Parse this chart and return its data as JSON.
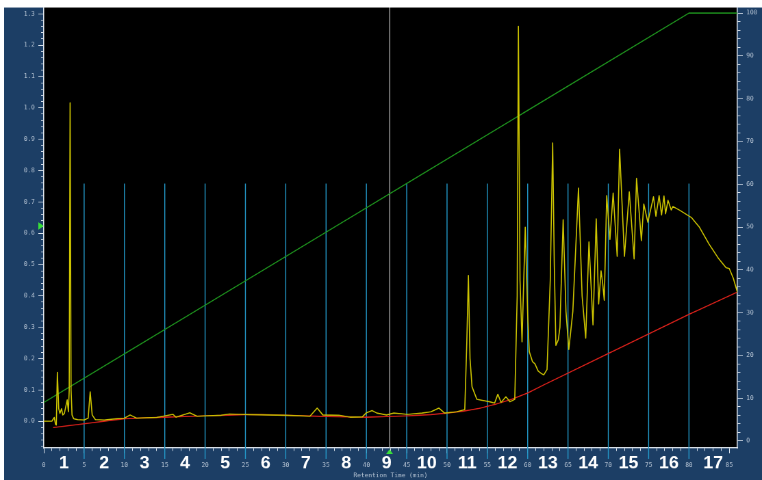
{
  "chart_data": {
    "type": "line",
    "xlabel": "Retention Time (min)",
    "xlim": [
      0,
      86
    ],
    "xticks": [
      0,
      {
        "value": 1,
        "label": null
      },
      {
        "value": 2,
        "label": null
      },
      {
        "value": 3,
        "label": null
      },
      {
        "value": 4,
        "label": null
      },
      5,
      {
        "value": 6,
        "label": null
      },
      {
        "value": 7,
        "label": null
      },
      {
        "value": 8,
        "label": null
      },
      {
        "value": 9,
        "label": null
      },
      10,
      {
        "value": 11,
        "label": null
      },
      {
        "value": 12,
        "label": null
      },
      {
        "value": 13,
        "label": null
      },
      {
        "value": 14,
        "label": null
      },
      15,
      {
        "value": 16,
        "label": null
      },
      {
        "value": 17,
        "label": null
      },
      {
        "value": 18,
        "label": null
      },
      {
        "value": 19,
        "label": null
      },
      20,
      {
        "value": 21,
        "label": null
      },
      {
        "value": 22,
        "label": null
      },
      {
        "value": 23,
        "label": null
      },
      {
        "value": 24,
        "label": null
      },
      25,
      {
        "value": 26,
        "label": null
      },
      {
        "value": 27,
        "label": null
      },
      {
        "value": 28,
        "label": null
      },
      {
        "value": 29,
        "label": null
      },
      30,
      {
        "value": 31,
        "label": null
      },
      {
        "value": 32,
        "label": null
      },
      {
        "value": 33,
        "label": null
      },
      {
        "value": 34,
        "label": null
      },
      35,
      {
        "value": 36,
        "label": null
      },
      {
        "value": 37,
        "label": null
      },
      {
        "value": 38,
        "label": null
      },
      {
        "value": 39,
        "label": null
      },
      40,
      {
        "value": 41,
        "label": null
      },
      {
        "value": 42,
        "label": null
      },
      {
        "value": 43,
        "label": null
      },
      {
        "value": 44,
        "label": null
      },
      45,
      {
        "value": 46,
        "label": null
      },
      {
        "value": 47,
        "label": null
      },
      {
        "value": 48,
        "label": null
      },
      {
        "value": 49,
        "label": null
      },
      50,
      {
        "value": 51,
        "label": null
      },
      {
        "value": 52,
        "label": null
      },
      {
        "value": 53,
        "label": null
      },
      {
        "value": 54,
        "label": null
      },
      55,
      {
        "value": 56,
        "label": null
      },
      {
        "value": 57,
        "label": null
      },
      {
        "value": 58,
        "label": null
      },
      {
        "value": 59,
        "label": null
      },
      60,
      {
        "value": 61,
        "label": null
      },
      {
        "value": 62,
        "label": null
      },
      {
        "value": 63,
        "label": null
      },
      {
        "value": 64,
        "label": null
      },
      65,
      {
        "value": 66,
        "label": null
      },
      {
        "value": 67,
        "label": null
      },
      {
        "value": 68,
        "label": null
      },
      {
        "value": 69,
        "label": null
      },
      70,
      {
        "value": 71,
        "label": null
      },
      {
        "value": 72,
        "label": null
      },
      {
        "value": 73,
        "label": null
      },
      {
        "value": 74,
        "label": null
      },
      75,
      {
        "value": 76,
        "label": null
      },
      {
        "value": 77,
        "label": null
      },
      {
        "value": 78,
        "label": null
      },
      {
        "value": 79,
        "label": null
      },
      80,
      {
        "value": 81,
        "label": null
      },
      {
        "value": 82,
        "label": null
      },
      {
        "value": 83,
        "label": null
      },
      {
        "value": 84,
        "label": null
      },
      85
    ],
    "ylim": [
      -0.085,
      1.32
    ],
    "yticks": [
      {
        "value": -0.08,
        "label": null
      },
      {
        "value": -0.06,
        "label": null
      },
      {
        "value": -0.04,
        "label": null
      },
      {
        "value": -0.02,
        "label": null
      },
      {
        "value": 0,
        "label": "0.0"
      },
      {
        "value": 0.02,
        "label": null
      },
      {
        "value": 0.04,
        "label": null
      },
      {
        "value": 0.06,
        "label": null
      },
      {
        "value": 0.08,
        "label": null
      },
      0.1,
      {
        "value": 0.12,
        "label": null
      },
      {
        "value": 0.14,
        "label": null
      },
      {
        "value": 0.16,
        "label": null
      },
      {
        "value": 0.18,
        "label": null
      },
      0.2,
      {
        "value": 0.22,
        "label": null
      },
      {
        "value": 0.24,
        "label": null
      },
      {
        "value": 0.26,
        "label": null
      },
      {
        "value": 0.28,
        "label": null
      },
      0.3,
      {
        "value": 0.32,
        "label": null
      },
      {
        "value": 0.34,
        "label": null
      },
      {
        "value": 0.36,
        "label": null
      },
      {
        "value": 0.38,
        "label": null
      },
      0.4,
      {
        "value": 0.42,
        "label": null
      },
      {
        "value": 0.44,
        "label": null
      },
      {
        "value": 0.46,
        "label": null
      },
      {
        "value": 0.48,
        "label": null
      },
      0.5,
      {
        "value": 0.52,
        "label": null
      },
      {
        "value": 0.54,
        "label": null
      },
      {
        "value": 0.56,
        "label": null
      },
      {
        "value": 0.58,
        "label": null
      },
      0.6,
      {
        "value": 0.62,
        "label": null
      },
      {
        "value": 0.64,
        "label": null
      },
      {
        "value": 0.66,
        "label": null
      },
      {
        "value": 0.68,
        "label": null
      },
      0.7,
      {
        "value": 0.72,
        "label": null
      },
      {
        "value": 0.74,
        "label": null
      },
      {
        "value": 0.76,
        "label": null
      },
      {
        "value": 0.78,
        "label": null
      },
      0.8,
      {
        "value": 0.82,
        "label": null
      },
      {
        "value": 0.84,
        "label": null
      },
      {
        "value": 0.86,
        "label": null
      },
      {
        "value": 0.88,
        "label": null
      },
      0.9,
      {
        "value": 0.92,
        "label": null
      },
      {
        "value": 0.94,
        "label": null
      },
      {
        "value": 0.96,
        "label": null
      },
      {
        "value": 0.98,
        "label": null
      },
      {
        "value": 1,
        "label": "1.0"
      },
      {
        "value": 1.02,
        "label": null
      },
      {
        "value": 1.04,
        "label": null
      },
      {
        "value": 1.06,
        "label": null
      },
      {
        "value": 1.08,
        "label": null
      },
      1.1,
      {
        "value": 1.12,
        "label": null
      },
      {
        "value": 1.14,
        "label": null
      },
      {
        "value": 1.16,
        "label": null
      },
      {
        "value": 1.18,
        "label": null
      },
      1.2,
      {
        "value": 1.22,
        "label": null
      },
      {
        "value": 1.24,
        "label": null
      },
      {
        "value": 1.26,
        "label": null
      },
      {
        "value": 1.28,
        "label": null
      },
      1.3
    ],
    "y2lim": [
      -1.6,
      101.3
    ],
    "y2ticks": [
      0,
      {
        "value": 2,
        "label": null
      },
      {
        "value": 4,
        "label": null
      },
      {
        "value": 6,
        "label": null
      },
      {
        "value": 8,
        "label": null
      },
      10,
      {
        "value": 12,
        "label": null
      },
      {
        "value": 14,
        "label": null
      },
      {
        "value": 16,
        "label": null
      },
      {
        "value": 18,
        "label": null
      },
      20,
      {
        "value": 22,
        "label": null
      },
      {
        "value": 24,
        "label": null
      },
      {
        "value": 26,
        "label": null
      },
      {
        "value": 28,
        "label": null
      },
      30,
      {
        "value": 32,
        "label": null
      },
      {
        "value": 34,
        "label": null
      },
      {
        "value": 36,
        "label": null
      },
      {
        "value": 38,
        "label": null
      },
      40,
      {
        "value": 42,
        "label": null
      },
      {
        "value": 44,
        "label": null
      },
      {
        "value": 46,
        "label": null
      },
      {
        "value": 48,
        "label": null
      },
      50,
      {
        "value": 52,
        "label": null
      },
      {
        "value": 54,
        "label": null
      },
      {
        "value": 56,
        "label": null
      },
      {
        "value": 58,
        "label": null
      },
      60,
      {
        "value": 62,
        "label": null
      },
      {
        "value": 64,
        "label": null
      },
      {
        "value": 66,
        "label": null
      },
      {
        "value": 68,
        "label": null
      },
      70,
      {
        "value": 72,
        "label": null
      },
      {
        "value": 74,
        "label": null
      },
      {
        "value": 76,
        "label": null
      },
      {
        "value": 78,
        "label": null
      },
      80,
      {
        "value": 82,
        "label": null
      },
      {
        "value": 84,
        "label": null
      },
      {
        "value": 86,
        "label": null
      },
      {
        "value": 88,
        "label": null
      },
      90,
      {
        "value": 92,
        "label": null
      },
      {
        "value": 94,
        "label": null
      },
      {
        "value": 96,
        "label": null
      },
      {
        "value": 98,
        "label": null
      },
      100
    ],
    "series": [
      {
        "color": "#cdc400",
        "x": [
          0,
          1,
          1.3,
          1.45,
          1.55,
          1.68,
          1.85,
          2,
          2.2,
          2.35,
          2.55,
          2.75,
          2.9,
          3.05,
          3.15,
          3.26,
          3.38,
          3.5,
          3.7,
          4.2,
          5,
          5.5,
          5.75,
          6,
          6.4,
          7.5,
          9,
          10,
          10.7,
          11.5,
          14,
          16,
          16.4,
          18.1,
          19,
          22,
          23,
          24.5,
          25.5,
          30,
          33,
          33.9,
          34.6,
          36.6,
          38,
          39.5,
          40,
          40.7,
          41.3,
          42.5,
          43.4,
          45.1,
          46.9,
          48,
          49,
          49.7,
          51.2,
          52.2,
          52.45,
          52.65,
          52.85,
          53.1,
          53.7,
          55.3,
          55.9,
          56.3,
          56.7,
          57.3,
          57.8,
          58.4,
          58.7,
          58.85,
          59.05,
          59.3,
          59.7,
          60,
          60.2,
          60.6,
          60.9,
          61.3,
          61.7,
          62,
          62.4,
          62.8,
          63.1,
          63.3,
          63.5,
          63.8,
          64,
          64.4,
          64.75,
          65.1,
          65.6,
          66.3,
          66.75,
          67.2,
          67.6,
          68.1,
          68.5,
          68.8,
          69.1,
          69.3,
          69.5,
          69.8,
          70.2,
          70.6,
          71.1,
          71.4,
          72,
          72.6,
          73.2,
          73.5,
          74.1,
          74.4,
          74.9,
          75.6,
          75.9,
          76.3,
          76.6,
          76.9,
          77.1,
          77.4,
          77.8,
          78,
          78.8,
          80.3,
          81.3,
          82.5,
          83.7,
          84.6,
          85,
          85.5,
          86
        ],
        "values": [
          0,
          0,
          0.012,
          -0.01,
          -0.012,
          0.156,
          0.04,
          0.025,
          0.04,
          0.02,
          0.025,
          0.05,
          0.068,
          0.03,
          0.1,
          1.016,
          0.1,
          0.02,
          0.008,
          0.005,
          0.004,
          0.01,
          0.094,
          0.02,
          0.005,
          0.004,
          0.008,
          0.01,
          0.02,
          0.01,
          0.012,
          0.022,
          0.013,
          0.027,
          0.016,
          0.019,
          0.023,
          0.022,
          0.021,
          0.019,
          0.016,
          0.042,
          0.02,
          0.019,
          0.013,
          0.014,
          0.027,
          0.034,
          0.026,
          0.02,
          0.026,
          0.022,
          0.026,
          0.03,
          0.042,
          0.026,
          0.03,
          0.037,
          0.25,
          0.465,
          0.2,
          0.11,
          0.07,
          0.062,
          0.058,
          0.086,
          0.06,
          0.078,
          0.062,
          0.07,
          0.4,
          1.26,
          0.45,
          0.253,
          0.619,
          0.34,
          0.222,
          0.19,
          0.183,
          0.16,
          0.152,
          0.148,
          0.165,
          0.45,
          0.888,
          0.5,
          0.242,
          0.26,
          0.3,
          0.643,
          0.35,
          0.229,
          0.35,
          0.744,
          0.4,
          0.265,
          0.572,
          0.307,
          0.646,
          0.374,
          0.48,
          0.44,
          0.386,
          0.72,
          0.58,
          0.728,
          0.526,
          0.868,
          0.526,
          0.732,
          0.518,
          0.775,
          0.576,
          0.693,
          0.635,
          0.716,
          0.654,
          0.72,
          0.658,
          0.719,
          0.662,
          0.705,
          0.674,
          0.685,
          0.674,
          0.65,
          0.619,
          0.565,
          0.518,
          0.49,
          0.487,
          0.456,
          0.412
        ]
      },
      {
        "color": "#e3221b",
        "x": [
          1.2,
          5,
          10,
          15,
          20,
          25,
          27,
          30,
          35,
          40,
          45,
          48,
          50,
          52,
          54,
          56,
          58,
          60,
          62,
          70,
          80,
          86
        ],
        "values": [
          -0.02,
          -0.008,
          0.008,
          0.013,
          0.017,
          0.021,
          0.021,
          0.019,
          0.015,
          0.013,
          0.017,
          0.021,
          0.026,
          0.032,
          0.041,
          0.054,
          0.07,
          0.09,
          0.116,
          0.216,
          0.341,
          0.412
        ]
      },
      {
        "color": "#1f9a1f",
        "axis": "y2",
        "x": [
          0,
          80,
          86
        ],
        "values": [
          9,
          100,
          100
        ]
      }
    ],
    "ref_lines": [
      {
        "axis": "x",
        "value": 5,
        "color": "#2399c9"
      },
      {
        "axis": "x",
        "value": 10,
        "color": "#2399c9"
      },
      {
        "axis": "x",
        "value": 15,
        "color": "#2399c9"
      },
      {
        "axis": "x",
        "value": 20,
        "color": "#2399c9"
      },
      {
        "axis": "x",
        "value": 25,
        "color": "#2399c9"
      },
      {
        "axis": "x",
        "value": 30,
        "color": "#2399c9"
      },
      {
        "axis": "x",
        "value": 35,
        "color": "#2399c9"
      },
      {
        "axis": "x",
        "value": 40,
        "color": "#2399c9"
      },
      {
        "axis": "x",
        "value": 45,
        "color": "#2399c9"
      },
      {
        "axis": "x",
        "value": 50,
        "color": "#2399c9"
      },
      {
        "axis": "x",
        "value": 55,
        "color": "#2399c9"
      },
      {
        "axis": "x",
        "value": 60,
        "color": "#2399c9"
      },
      {
        "axis": "x",
        "value": 65,
        "color": "#2399c9"
      },
      {
        "axis": "x",
        "value": 70,
        "color": "#2399c9"
      },
      {
        "axis": "x",
        "value": 75,
        "color": "#2399c9"
      },
      {
        "axis": "x",
        "value": 80,
        "color": "#2399c9"
      },
      {
        "axis": "x",
        "value": 42.9,
        "color": "#a8a8a8"
      }
    ],
    "annotations": [
      "1",
      "2",
      "3",
      "4",
      "5",
      "6",
      "7",
      "8",
      "9",
      "10",
      "11",
      "12",
      "13",
      "14",
      "15",
      "16",
      "17"
    ]
  }
}
